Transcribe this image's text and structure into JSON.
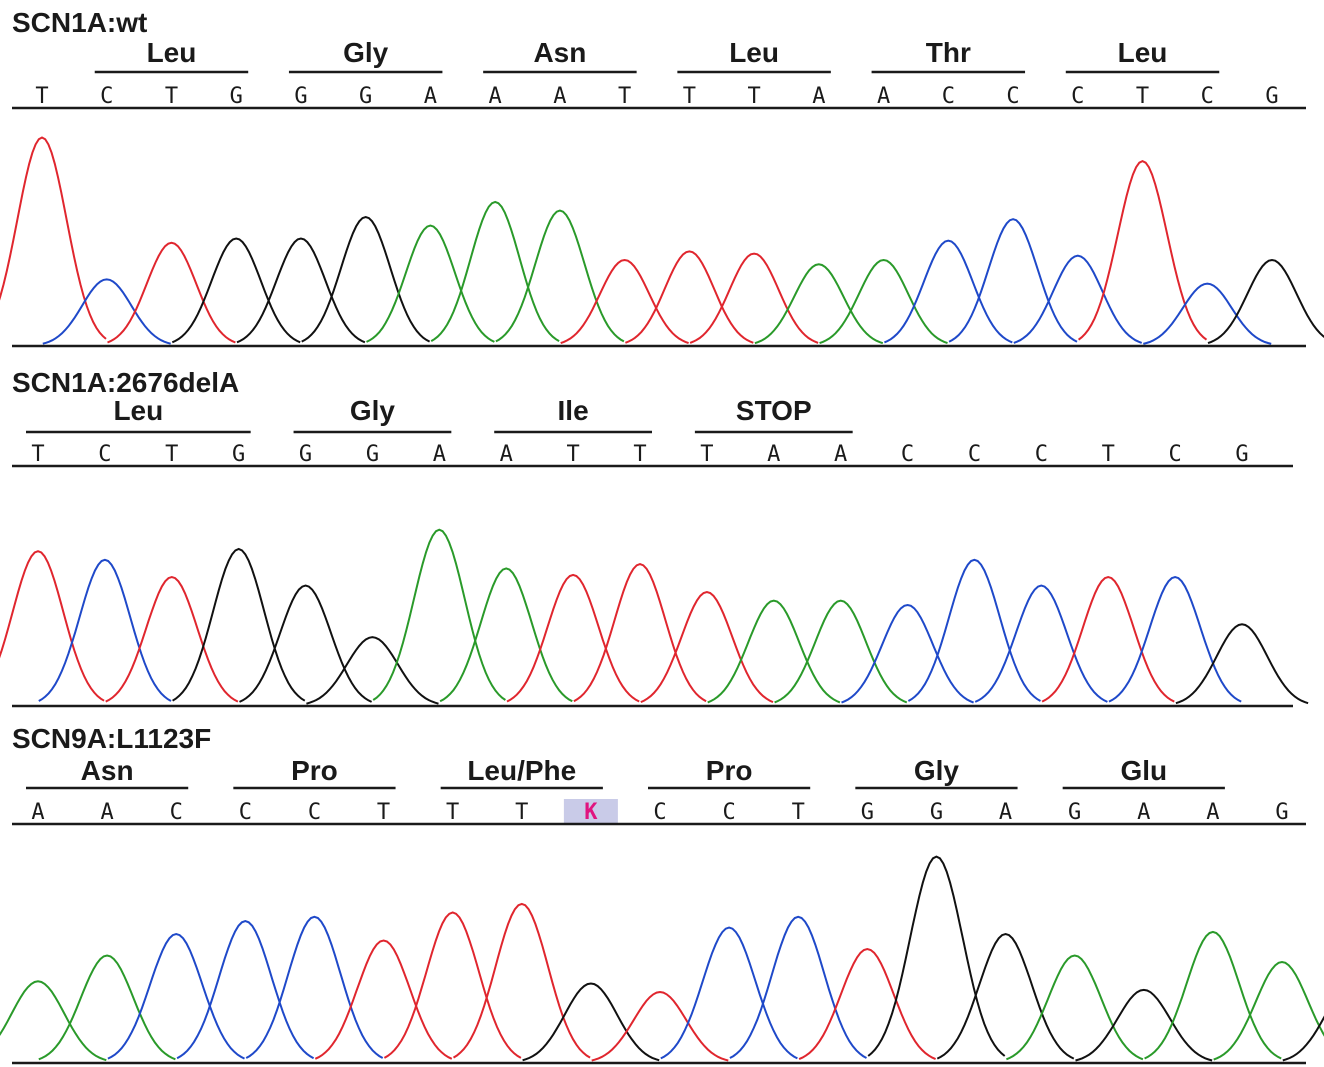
{
  "colors": {
    "A": "#2a9a2a",
    "C": "#1f49c9",
    "G": "#111111",
    "T": "#e0262e",
    "text": "#1a1a1a",
    "highlight_bg": "#c9cbe8",
    "highlight_text": "#e0157f"
  },
  "panels": [
    {
      "title": "SCN1A:wt",
      "bases": [
        "T",
        "C",
        "T",
        "G",
        "G",
        "G",
        "A",
        "A",
        "A",
        "T",
        "T",
        "T",
        "A",
        "A",
        "C",
        "C",
        "C",
        "T",
        "C",
        "G"
      ],
      "codons": [
        {
          "label": "Leu",
          "from": 1,
          "to": 3
        },
        {
          "label": "Gly",
          "from": 4,
          "to": 6
        },
        {
          "label": "Asn",
          "from": 7,
          "to": 9
        },
        {
          "label": "Leu",
          "from": 10,
          "to": 12
        },
        {
          "label": "Thr",
          "from": 13,
          "to": 15
        },
        {
          "label": "Leu",
          "from": 16,
          "to": 18
        }
      ],
      "peaks": [
        {
          "b": "T",
          "h": 0.97
        },
        {
          "b": "C",
          "h": 0.31
        },
        {
          "b": "T",
          "h": 0.48
        },
        {
          "b": "G",
          "h": 0.5
        },
        {
          "b": "G",
          "h": 0.5
        },
        {
          "b": "G",
          "h": 0.6
        },
        {
          "b": "A",
          "h": 0.56
        },
        {
          "b": "A",
          "h": 0.67
        },
        {
          "b": "A",
          "h": 0.63
        },
        {
          "b": "T",
          "h": 0.4
        },
        {
          "b": "T",
          "h": 0.44
        },
        {
          "b": "T",
          "h": 0.43
        },
        {
          "b": "A",
          "h": 0.38
        },
        {
          "b": "A",
          "h": 0.4
        },
        {
          "b": "C",
          "h": 0.49
        },
        {
          "b": "C",
          "h": 0.59
        },
        {
          "b": "C",
          "h": 0.42
        },
        {
          "b": "T",
          "h": 0.86
        },
        {
          "b": "C",
          "h": 0.29
        },
        {
          "b": "G",
          "h": 0.4
        }
      ]
    },
    {
      "title": "SCN1A:2676delA",
      "bases": [
        "T",
        "C",
        "T",
        "G",
        "G",
        "G",
        "A",
        "A",
        "T",
        "T",
        "T",
        "A",
        "A",
        "C",
        "C",
        "C",
        "T",
        "C",
        "G"
      ],
      "codons": [
        {
          "label": "Leu",
          "from": 0,
          "to": 3
        },
        {
          "label": "Gly",
          "from": 4,
          "to": 6
        },
        {
          "label": "Ile",
          "from": 7,
          "to": 9
        },
        {
          "label": "STOP",
          "from": 10,
          "to": 12
        }
      ],
      "peaks": [
        {
          "b": "T",
          "h": 0.72
        },
        {
          "b": "C",
          "h": 0.68
        },
        {
          "b": "T",
          "h": 0.6
        },
        {
          "b": "G",
          "h": 0.73
        },
        {
          "b": "G",
          "h": 0.56
        },
        {
          "b": "G",
          "h": 0.32
        },
        {
          "b": "A",
          "h": 0.82
        },
        {
          "b": "A",
          "h": 0.64
        },
        {
          "b": "T",
          "h": 0.61
        },
        {
          "b": "T",
          "h": 0.66
        },
        {
          "b": "T",
          "h": 0.53
        },
        {
          "b": "A",
          "h": 0.49
        },
        {
          "b": "A",
          "h": 0.49
        },
        {
          "b": "C",
          "h": 0.47
        },
        {
          "b": "C",
          "h": 0.68
        },
        {
          "b": "C",
          "h": 0.56
        },
        {
          "b": "T",
          "h": 0.6
        },
        {
          "b": "C",
          "h": 0.6
        },
        {
          "b": "G",
          "h": 0.38
        }
      ]
    },
    {
      "title": "SCN9A:L1123F",
      "bases": [
        "A",
        "A",
        "C",
        "C",
        "C",
        "T",
        "T",
        "T",
        "K",
        "C",
        "C",
        "T",
        "G",
        "G",
        "A",
        "G",
        "A",
        "A",
        "G"
      ],
      "codons": [
        {
          "label": "Asn",
          "from": 0,
          "to": 2
        },
        {
          "label": "Pro",
          "from": 3,
          "to": 5
        },
        {
          "label": "Leu/Phe",
          "from": 6,
          "to": 8
        },
        {
          "label": "Pro",
          "from": 9,
          "to": 11
        },
        {
          "label": "Gly",
          "from": 12,
          "to": 14
        },
        {
          "label": "Glu",
          "from": 15,
          "to": 17
        }
      ],
      "highlight_index": 8,
      "peaks": [
        {
          "b": "A",
          "h": 0.38
        },
        {
          "b": "A",
          "h": 0.5
        },
        {
          "b": "C",
          "h": 0.6
        },
        {
          "b": "C",
          "h": 0.66
        },
        {
          "b": "C",
          "h": 0.68
        },
        {
          "b": "T",
          "h": 0.57
        },
        {
          "b": "T",
          "h": 0.7
        },
        {
          "b": "T",
          "h": 0.74
        },
        {
          "b": "G",
          "h": 0.37
        },
        {
          "b": "T",
          "h": 0.33
        },
        {
          "b": "C",
          "h": 0.63
        },
        {
          "b": "C",
          "h": 0.68
        },
        {
          "b": "T",
          "h": 0.53
        },
        {
          "b": "G",
          "h": 0.96
        },
        {
          "b": "G",
          "h": 0.6
        },
        {
          "b": "A",
          "h": 0.5
        },
        {
          "b": "G",
          "h": 0.34
        },
        {
          "b": "A",
          "h": 0.61
        },
        {
          "b": "A",
          "h": 0.47
        },
        {
          "b": "G",
          "h": 0.36
        }
      ]
    }
  ]
}
